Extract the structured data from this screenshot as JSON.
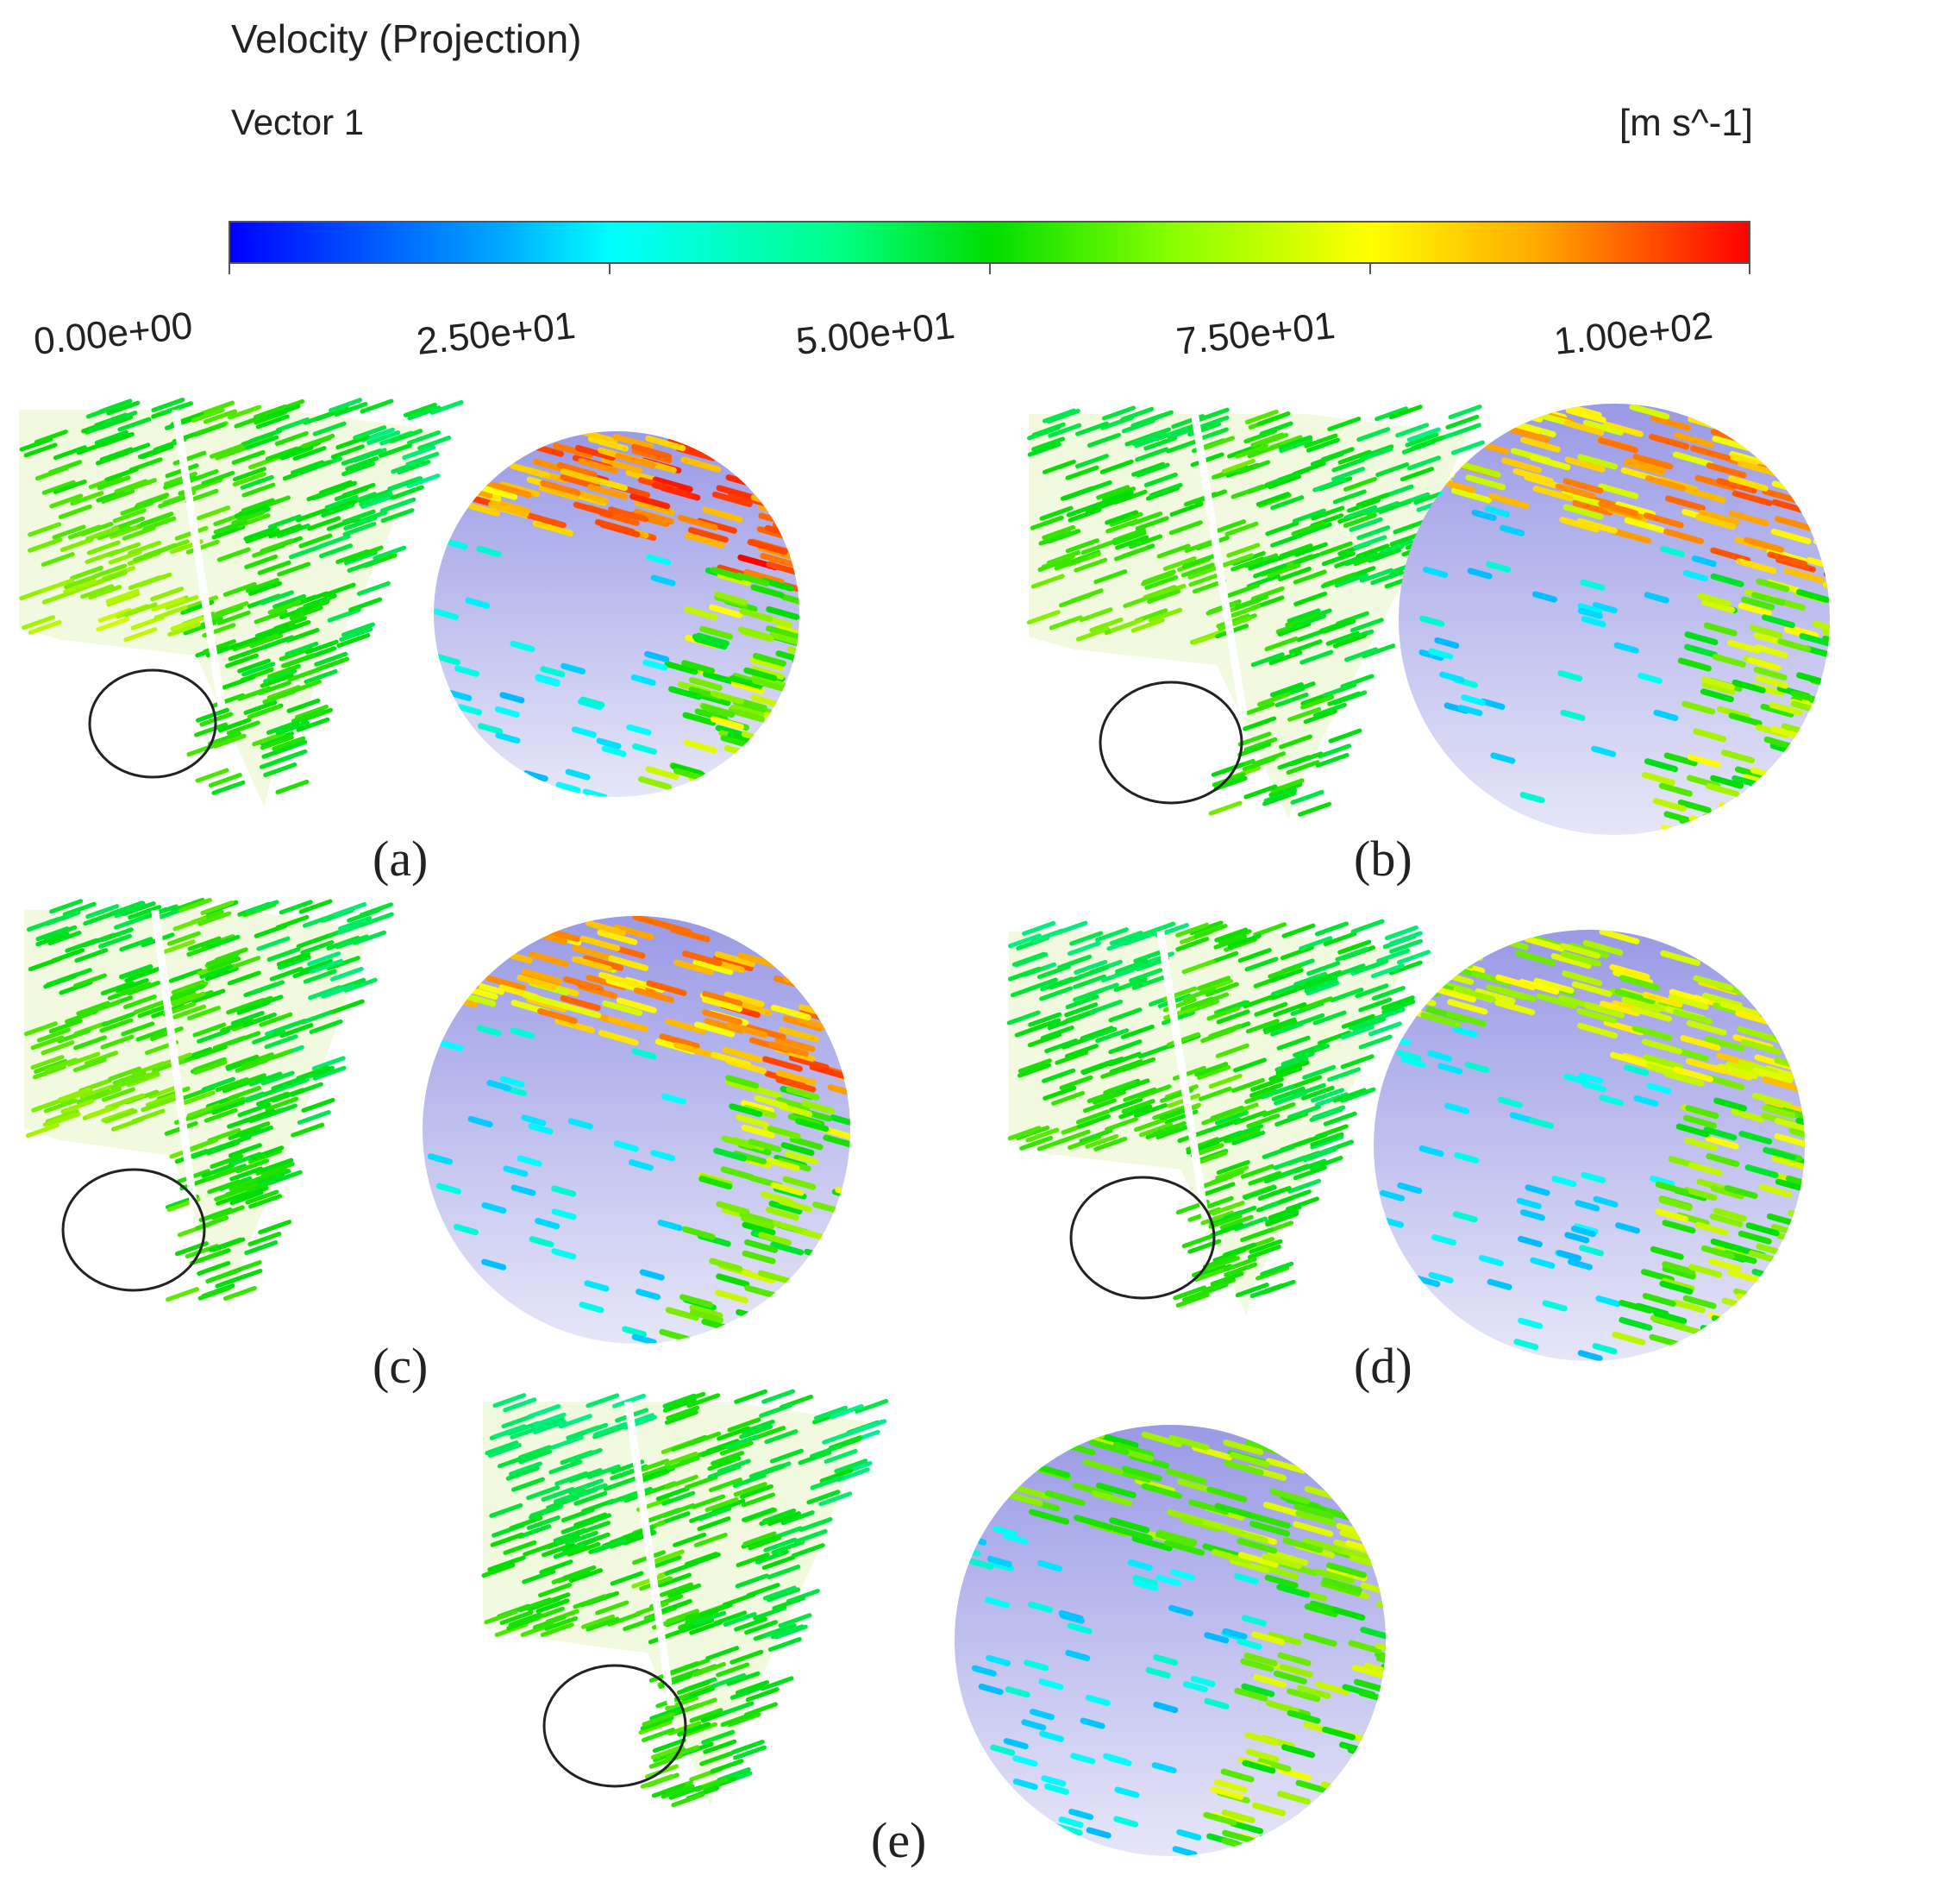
{
  "legend": {
    "title": "Velocity (Projection)",
    "subtitle": "Vector 1",
    "unit": "[m s^-1]",
    "range": [
      0,
      100
    ],
    "ticks": [
      "0.00e+00",
      "2.50e+01",
      "5.00e+01",
      "7.50e+01",
      "1.00e+02"
    ],
    "colormap": [
      "#0000ff",
      "#00ffff",
      "#00dd00",
      "#ffff00",
      "#ff0000"
    ]
  },
  "panels": [
    {
      "label": "(a)"
    },
    {
      "label": "(b)"
    },
    {
      "label": "(c)"
    },
    {
      "label": "(d)"
    },
    {
      "label": "(e)"
    }
  ]
}
